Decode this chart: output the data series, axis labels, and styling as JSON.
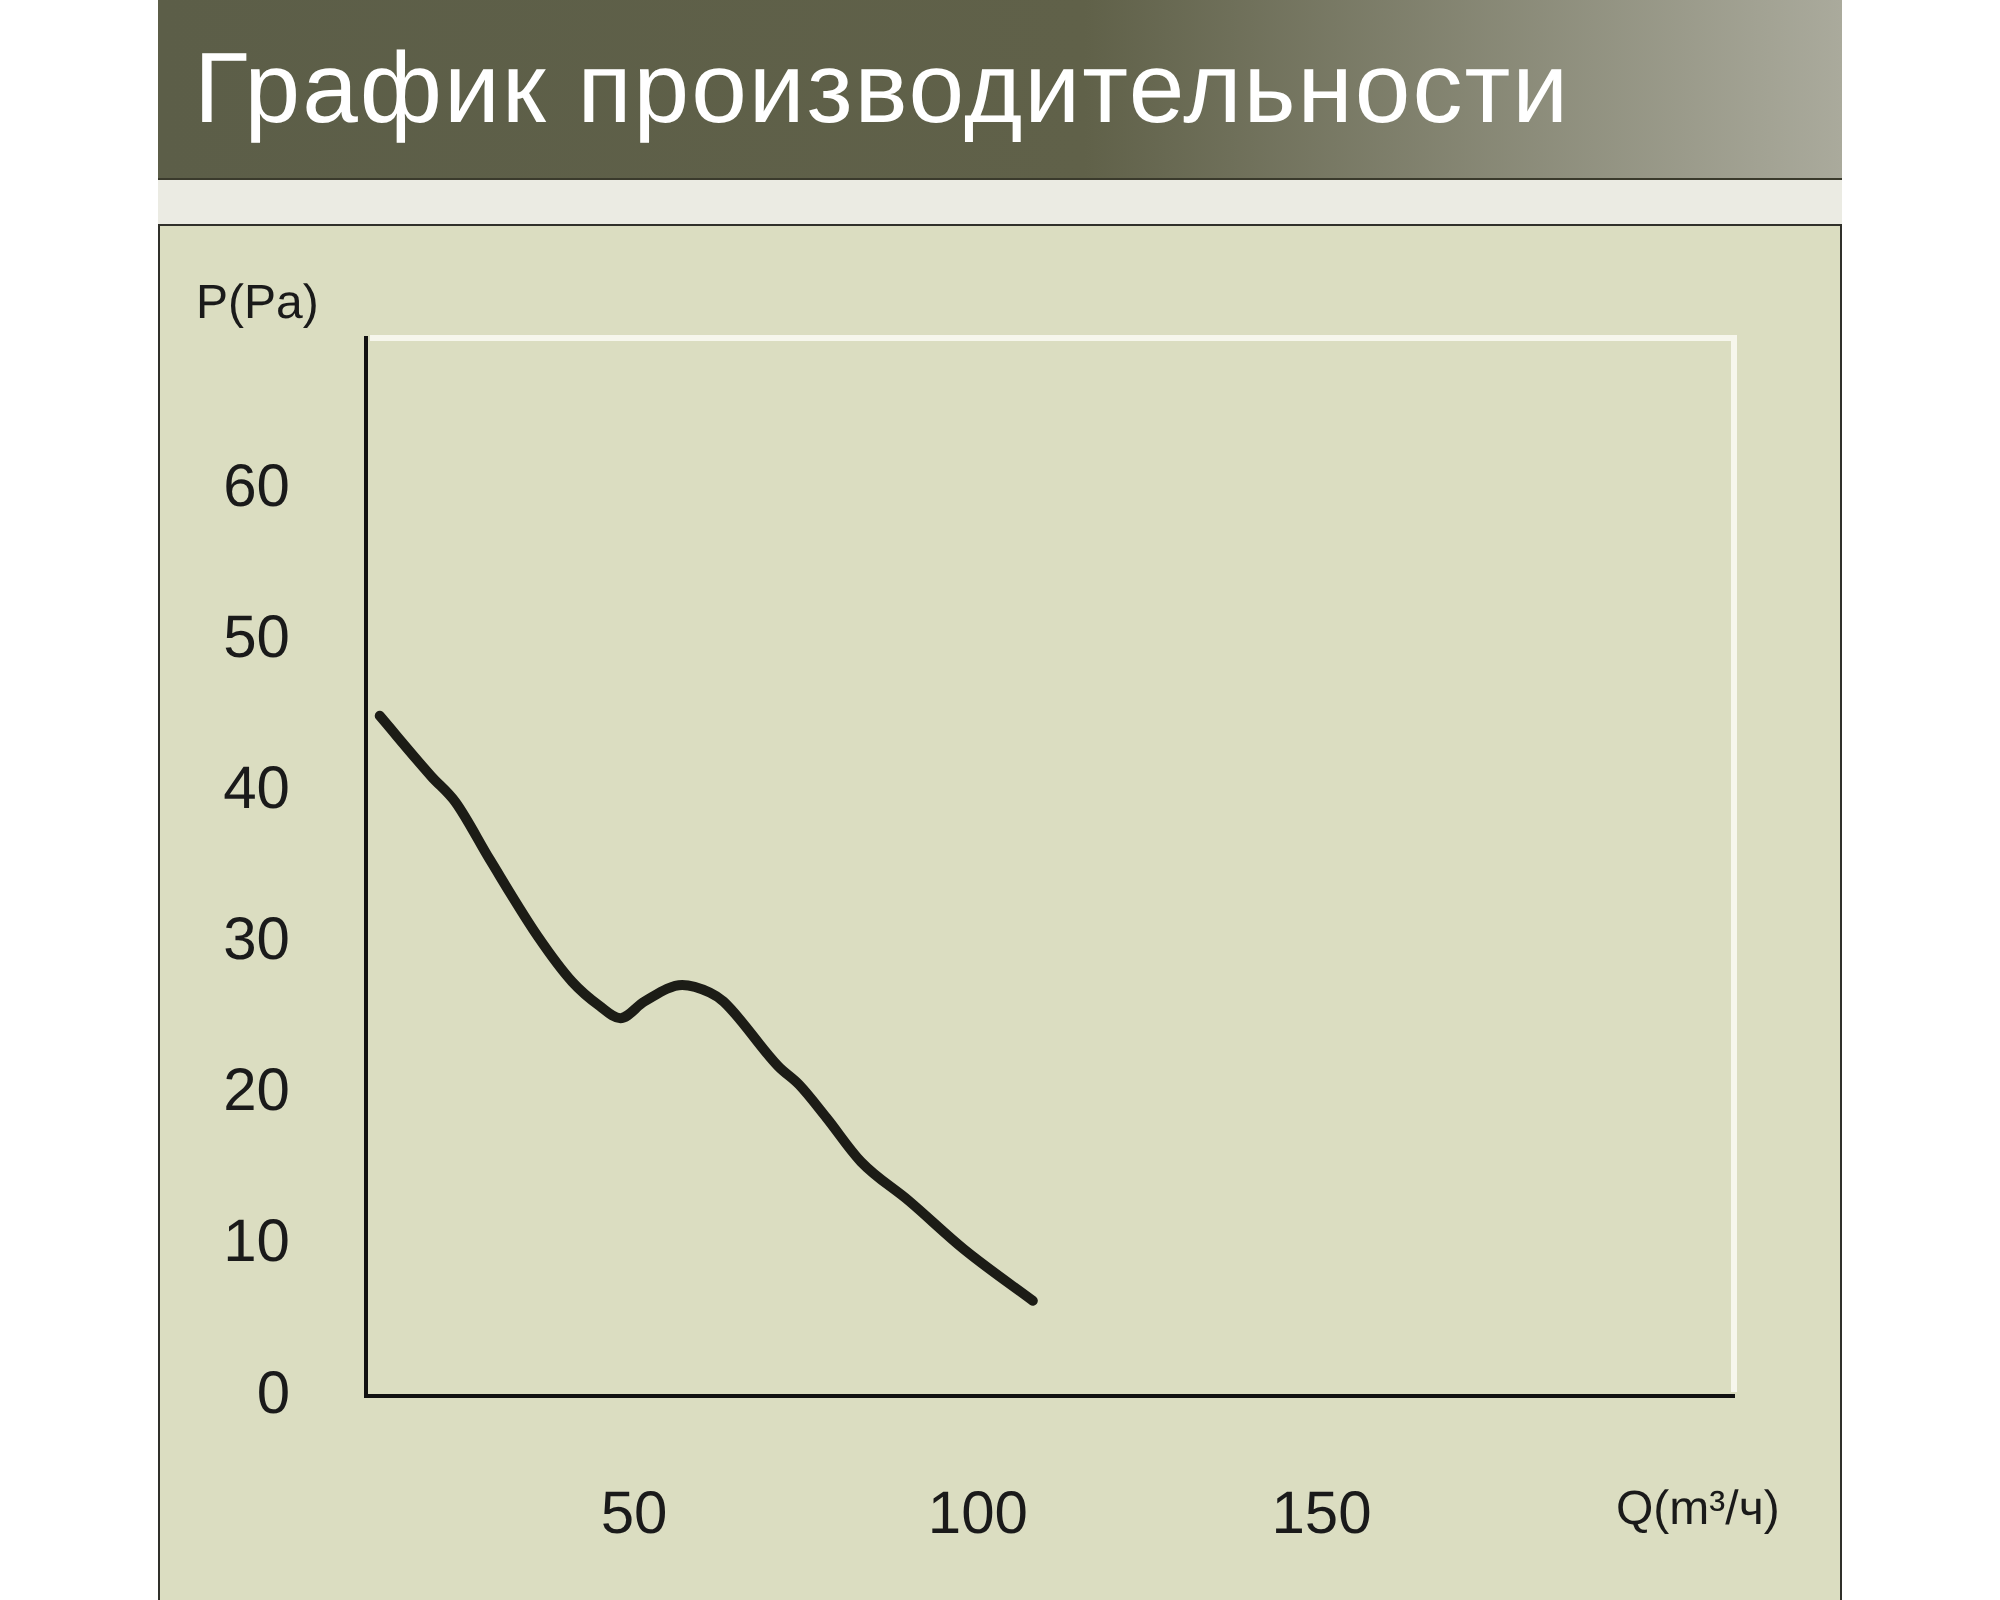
{
  "chart_data": {
    "type": "line",
    "title": "График производительности",
    "xlabel": "Q(m³/ч)",
    "ylabel": "P(Pa)",
    "x": [
      13,
      20.5,
      24,
      29,
      36,
      41,
      45,
      48,
      51.5,
      57,
      61,
      63,
      71,
      74,
      78,
      83,
      90,
      98,
      108
    ],
    "series": [
      {
        "color": "#1c1c16",
        "values": [
          45,
          41,
          39.3,
          35.5,
          30.4,
          27.4,
          25.8,
          25,
          26.1,
          27.2,
          26.7,
          26.1,
          21.8,
          20.6,
          18.4,
          15.5,
          12.9,
          9.7,
          6.3
        ]
      }
    ],
    "xlim": [
      11,
      210
    ],
    "ylim": [
      0,
      70
    ],
    "xticks": [
      50,
      100,
      150
    ],
    "yticks": [
      0,
      10,
      20,
      30,
      40,
      50,
      60
    ]
  }
}
